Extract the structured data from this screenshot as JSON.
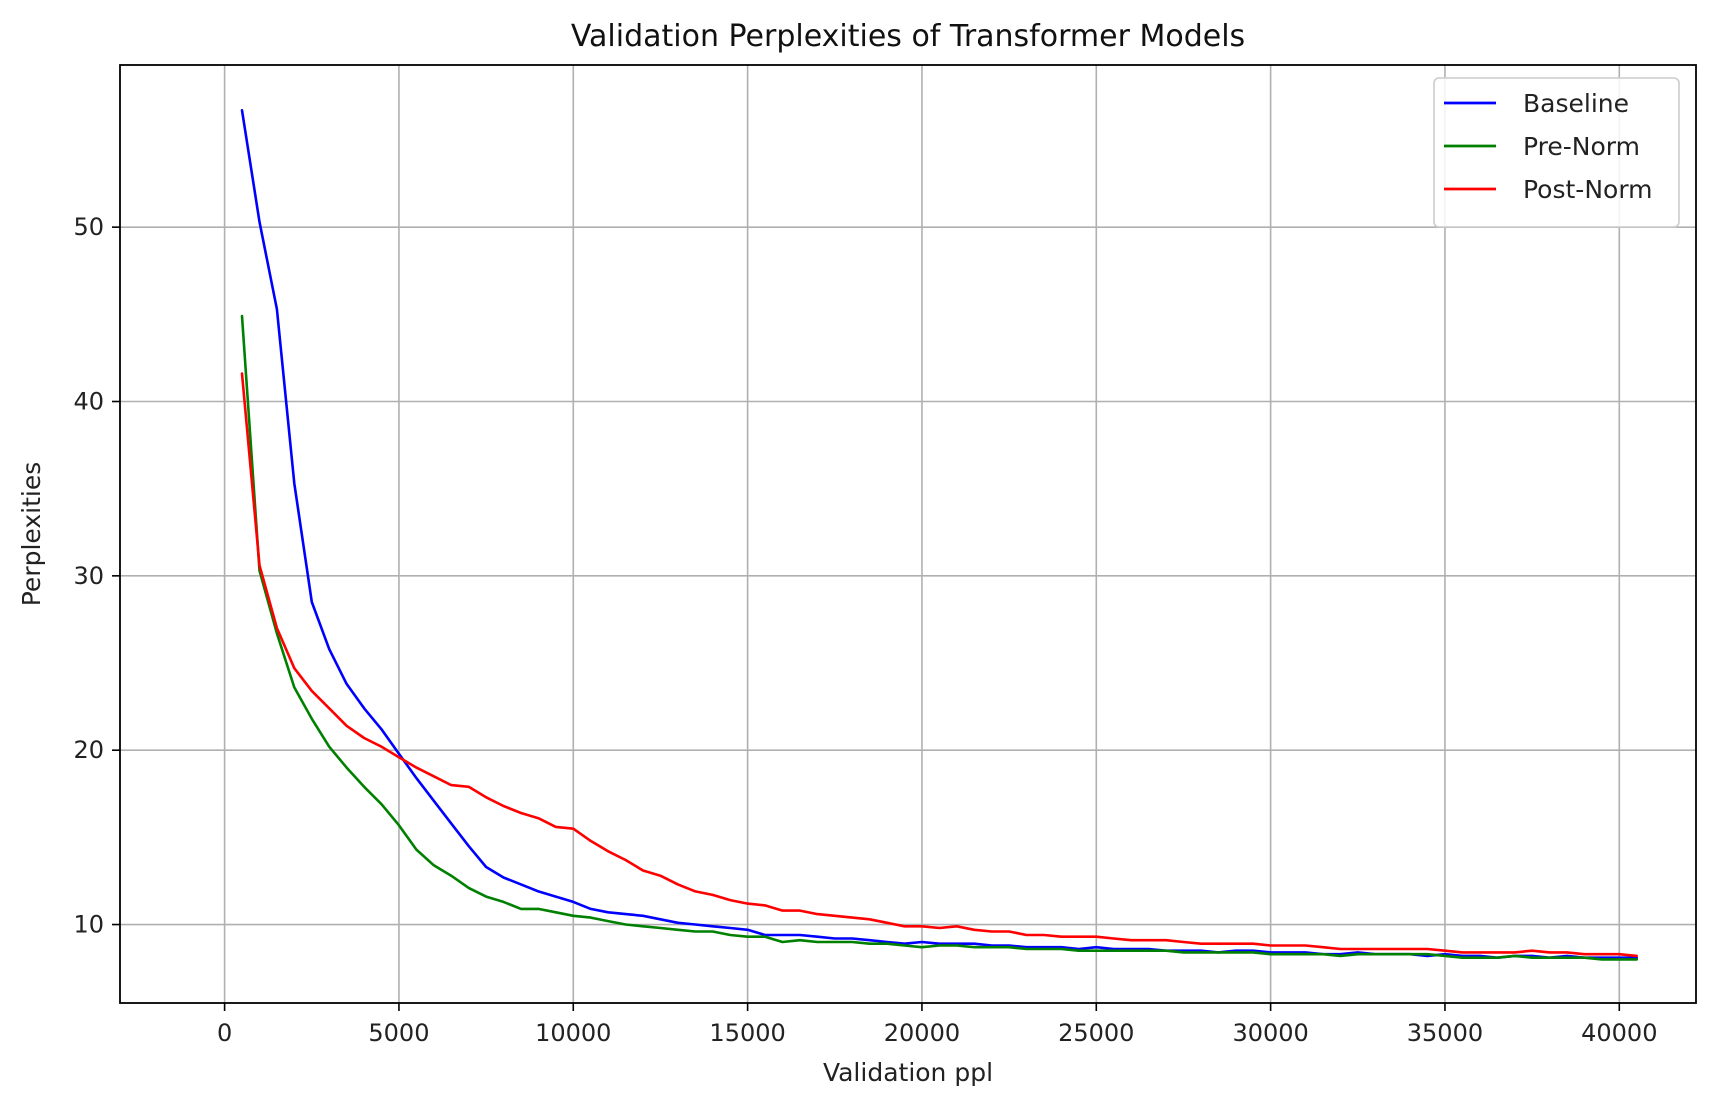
{
  "chart_data": {
    "type": "line",
    "title": "Validation Perplexities of Transformer Models",
    "xlabel": "Validation ppl",
    "ylabel": "Perplexities",
    "xlim": [
      -3000,
      42200
    ],
    "ylim": [
      5.5,
      59.3
    ],
    "xticks": [
      0,
      5000,
      10000,
      15000,
      20000,
      25000,
      30000,
      35000,
      40000
    ],
    "yticks": [
      10,
      20,
      30,
      40,
      50
    ],
    "grid": true,
    "legend_position": "top-right",
    "series": [
      {
        "name": "Baseline",
        "color": "#0000ff",
        "x": [
          500,
          1000,
          1500,
          2000,
          2500,
          3000,
          3500,
          4000,
          4500,
          5000,
          5500,
          6000,
          6500,
          7000,
          7500,
          8000,
          8500,
          9000,
          9500,
          10000,
          10500,
          11000,
          11500,
          12000,
          12500,
          13000,
          13500,
          14000,
          14500,
          15000,
          15500,
          16000,
          16500,
          17000,
          17500,
          18000,
          18500,
          19000,
          19500,
          20000,
          20500,
          21000,
          21500,
          22000,
          22500,
          23000,
          23500,
          24000,
          24500,
          25000,
          25500,
          26000,
          26500,
          27000,
          27500,
          28000,
          28500,
          29000,
          29500,
          30000,
          30500,
          31000,
          31500,
          32000,
          32500,
          33000,
          33500,
          34000,
          34500,
          35000,
          35500,
          36000,
          36500,
          37000,
          37500,
          38000,
          38500,
          39000,
          39500,
          40000,
          40500
        ],
        "y": [
          56.7,
          50.3,
          45.3,
          35.3,
          28.5,
          25.8,
          23.8,
          22.4,
          21.2,
          19.8,
          18.4,
          17.1,
          15.8,
          14.5,
          13.3,
          12.7,
          12.3,
          11.9,
          11.6,
          11.3,
          10.9,
          10.7,
          10.6,
          10.5,
          10.3,
          10.1,
          10.0,
          9.9,
          9.8,
          9.7,
          9.4,
          9.4,
          9.4,
          9.3,
          9.2,
          9.2,
          9.1,
          9.0,
          8.9,
          9.0,
          8.9,
          8.9,
          8.9,
          8.8,
          8.8,
          8.7,
          8.7,
          8.7,
          8.6,
          8.7,
          8.6,
          8.6,
          8.6,
          8.5,
          8.5,
          8.5,
          8.4,
          8.5,
          8.5,
          8.4,
          8.4,
          8.4,
          8.3,
          8.3,
          8.4,
          8.3,
          8.3,
          8.3,
          8.2,
          8.3,
          8.2,
          8.2,
          8.1,
          8.2,
          8.2,
          8.1,
          8.2,
          8.1,
          8.1,
          8.1,
          8.1
        ]
      },
      {
        "name": "Pre-Norm",
        "color": "#008000",
        "x": [
          500,
          1000,
          1500,
          2000,
          2500,
          3000,
          3500,
          4000,
          4500,
          5000,
          5500,
          6000,
          6500,
          7000,
          7500,
          8000,
          8500,
          9000,
          9500,
          10000,
          10500,
          11000,
          11500,
          12000,
          12500,
          13000,
          13500,
          14000,
          14500,
          15000,
          15500,
          16000,
          16500,
          17000,
          17500,
          18000,
          18500,
          19000,
          19500,
          20000,
          20500,
          21000,
          21500,
          22000,
          22500,
          23000,
          23500,
          24000,
          24500,
          25000,
          25500,
          26000,
          26500,
          27000,
          27500,
          28000,
          28500,
          29000,
          29500,
          30000,
          30500,
          31000,
          31500,
          32000,
          32500,
          33000,
          33500,
          34000,
          34500,
          35000,
          35500,
          36000,
          36500,
          37000,
          37500,
          38000,
          38500,
          39000,
          39500,
          40000,
          40500
        ],
        "y": [
          44.9,
          30.3,
          26.7,
          23.6,
          21.8,
          20.2,
          19.0,
          17.9,
          16.9,
          15.7,
          14.3,
          13.4,
          12.8,
          12.1,
          11.6,
          11.3,
          10.9,
          10.9,
          10.7,
          10.5,
          10.4,
          10.2,
          10.0,
          9.9,
          9.8,
          9.7,
          9.6,
          9.6,
          9.4,
          9.3,
          9.3,
          9.0,
          9.1,
          9.0,
          9.0,
          9.0,
          8.9,
          8.9,
          8.8,
          8.7,
          8.8,
          8.8,
          8.7,
          8.7,
          8.7,
          8.6,
          8.6,
          8.6,
          8.5,
          8.5,
          8.5,
          8.5,
          8.5,
          8.5,
          8.4,
          8.4,
          8.4,
          8.4,
          8.4,
          8.3,
          8.3,
          8.3,
          8.3,
          8.2,
          8.3,
          8.3,
          8.3,
          8.3,
          8.3,
          8.2,
          8.1,
          8.1,
          8.1,
          8.2,
          8.1,
          8.1,
          8.1,
          8.1,
          8.0,
          8.0,
          8.0
        ]
      },
      {
        "name": "Post-Norm",
        "color": "#ff0000",
        "x": [
          500,
          1000,
          1500,
          2000,
          2500,
          3000,
          3500,
          4000,
          4500,
          5000,
          5500,
          6000,
          6500,
          7000,
          7500,
          8000,
          8500,
          9000,
          9500,
          10000,
          10500,
          11000,
          11500,
          12000,
          12500,
          13000,
          13500,
          14000,
          14500,
          15000,
          15500,
          16000,
          16500,
          17000,
          17500,
          18000,
          18500,
          19000,
          19500,
          20000,
          20500,
          21000,
          21500,
          22000,
          22500,
          23000,
          23500,
          24000,
          24500,
          25000,
          25500,
          26000,
          26500,
          27000,
          27500,
          28000,
          28500,
          29000,
          29500,
          30000,
          30500,
          31000,
          31500,
          32000,
          32500,
          33000,
          33500,
          34000,
          34500,
          35000,
          35500,
          36000,
          36500,
          37000,
          37500,
          38000,
          38500,
          39000,
          39500,
          40000,
          40500
        ],
        "y": [
          41.6,
          30.6,
          27.0,
          24.7,
          23.4,
          22.4,
          21.4,
          20.7,
          20.2,
          19.6,
          19.0,
          18.5,
          18.0,
          17.9,
          17.3,
          16.8,
          16.4,
          16.1,
          15.6,
          15.5,
          14.8,
          14.2,
          13.7,
          13.1,
          12.8,
          12.3,
          11.9,
          11.7,
          11.4,
          11.2,
          11.1,
          10.8,
          10.8,
          10.6,
          10.5,
          10.4,
          10.3,
          10.1,
          9.9,
          9.9,
          9.8,
          9.9,
          9.7,
          9.6,
          9.6,
          9.4,
          9.4,
          9.3,
          9.3,
          9.3,
          9.2,
          9.1,
          9.1,
          9.1,
          9.0,
          8.9,
          8.9,
          8.9,
          8.9,
          8.8,
          8.8,
          8.8,
          8.7,
          8.6,
          8.6,
          8.6,
          8.6,
          8.6,
          8.6,
          8.5,
          8.4,
          8.4,
          8.4,
          8.4,
          8.5,
          8.4,
          8.4,
          8.3,
          8.3,
          8.3,
          8.2
        ]
      }
    ]
  }
}
